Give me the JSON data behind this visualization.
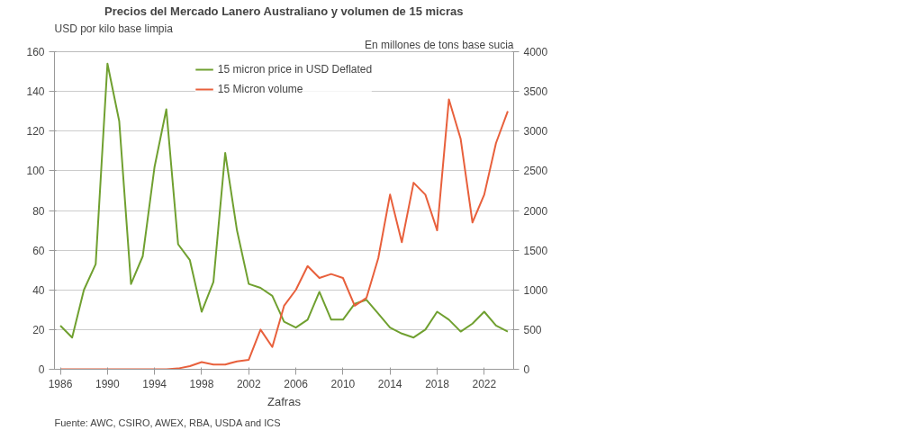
{
  "chart_data": {
    "type": "line",
    "title": "Precios del Mercado Lanero Australiano y volumen de 15 micras",
    "xlabel": "Zafras",
    "ylabel": "USD por kilo base limpia",
    "y2label": "En millones de tons base sucia",
    "x": [
      1986,
      1987,
      1988,
      1989,
      1990,
      1991,
      1992,
      1993,
      1994,
      1995,
      1996,
      1997,
      1998,
      1999,
      2000,
      2001,
      2002,
      2003,
      2004,
      2005,
      2006,
      2007,
      2008,
      2009,
      2010,
      2011,
      2012,
      2013,
      2014,
      2015,
      2016,
      2017,
      2018,
      2019,
      2020,
      2021,
      2022,
      2023,
      2024
    ],
    "series": [
      {
        "name": "15 micron price in USD Deflated",
        "color": "#70a030",
        "values": [
          22,
          16,
          40,
          53,
          154,
          125,
          43,
          57,
          102,
          131,
          63,
          55,
          29,
          44,
          109,
          70,
          43,
          41,
          37,
          24,
          21,
          25,
          39,
          25,
          25,
          33,
          35,
          28,
          21,
          18,
          16,
          20,
          29,
          25,
          19,
          23,
          29,
          22,
          19
        ]
      },
      {
        "name": "15 Micron volume",
        "color": "#e8603c",
        "axis": "y2",
        "values": [
          0,
          0,
          0,
          0,
          0,
          0,
          0,
          0,
          0,
          0,
          10,
          40,
          90,
          60,
          60,
          100,
          120,
          500,
          280,
          800,
          1000,
          1300,
          1150,
          1200,
          1150,
          800,
          900,
          1400,
          2200,
          1600,
          2350,
          2200,
          1750,
          3400,
          2900,
          1850,
          2200,
          2850,
          3250
        ]
      }
    ],
    "xlim": [
      1985.5,
      2024.5
    ],
    "xticks": [
      1986,
      1990,
      1994,
      1998,
      2002,
      2006,
      2010,
      2014,
      2018,
      2022
    ],
    "ylim": [
      0,
      160
    ],
    "yticks": [
      0,
      20,
      40,
      60,
      80,
      100,
      120,
      140,
      160
    ],
    "y2lim": [
      0,
      4000
    ],
    "y2ticks": [
      0,
      500,
      1000,
      1500,
      2000,
      2500,
      3000,
      3500,
      4000
    ],
    "grid": "y",
    "legend": "top",
    "marker": "none",
    "line_style": "solid",
    "annotations": [
      "Fuente: AWC, CSIRO, AWEX, RBA, USDA and ICS"
    ]
  }
}
